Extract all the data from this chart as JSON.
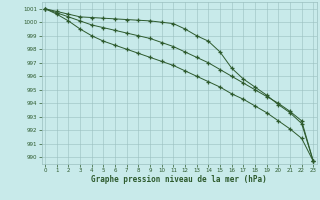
{
  "x": [
    0,
    1,
    2,
    3,
    4,
    5,
    6,
    7,
    8,
    9,
    10,
    11,
    12,
    13,
    14,
    15,
    16,
    17,
    18,
    19,
    20,
    21,
    22,
    23
  ],
  "line1": [
    1001.0,
    1000.8,
    1000.6,
    1000.4,
    1000.35,
    1000.3,
    1000.25,
    1000.2,
    1000.15,
    1000.1,
    1000.0,
    999.9,
    999.5,
    999.0,
    998.6,
    997.8,
    996.6,
    995.8,
    995.2,
    994.6,
    993.9,
    993.3,
    992.5,
    989.7
  ],
  "line2": [
    1001.0,
    1000.7,
    1000.4,
    1000.1,
    999.8,
    999.6,
    999.4,
    999.2,
    999.0,
    998.8,
    998.5,
    998.2,
    997.8,
    997.4,
    997.0,
    996.5,
    996.0,
    995.5,
    995.0,
    994.5,
    994.0,
    993.4,
    992.7,
    989.7
  ],
  "line3": [
    1001.0,
    1000.6,
    1000.1,
    999.5,
    999.0,
    998.6,
    998.3,
    998.0,
    997.7,
    997.4,
    997.1,
    996.8,
    996.4,
    996.0,
    995.6,
    995.2,
    994.7,
    994.3,
    993.8,
    993.3,
    992.7,
    992.1,
    991.4,
    989.7
  ],
  "background_color": "#c8eaea",
  "grid_color": "#9bbfbf",
  "line_color": "#2d5a2d",
  "title": "Graphe pression niveau de la mer (hPa)",
  "ylim": [
    989.5,
    1001.5
  ],
  "yticks": [
    990,
    991,
    992,
    993,
    994,
    995,
    996,
    997,
    998,
    999,
    1000,
    1001
  ],
  "xlim": [
    -0.3,
    23.3
  ],
  "xticks": [
    0,
    1,
    2,
    3,
    4,
    5,
    6,
    7,
    8,
    9,
    10,
    11,
    12,
    13,
    14,
    15,
    16,
    17,
    18,
    19,
    20,
    21,
    22,
    23
  ]
}
